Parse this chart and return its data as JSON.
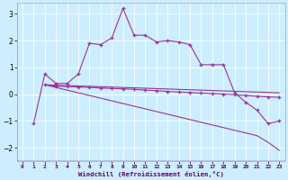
{
  "xlabel": "Windchill (Refroidissement éolien,°C)",
  "background_color": "#cceeff",
  "line_color": "#993399",
  "xlim": [
    -0.5,
    23.5
  ],
  "ylim": [
    -2.5,
    3.4
  ],
  "yticks": [
    -2,
    -1,
    0,
    1,
    2,
    3
  ],
  "xticks": [
    0,
    1,
    2,
    3,
    4,
    5,
    6,
    7,
    8,
    9,
    10,
    11,
    12,
    13,
    14,
    15,
    16,
    17,
    18,
    19,
    20,
    21,
    22,
    23
  ],
  "series1_x": [
    1,
    2,
    3,
    4,
    5,
    6,
    7,
    8,
    9,
    10,
    11,
    12,
    13,
    14,
    15,
    16,
    17,
    18,
    19,
    20,
    21,
    22,
    23
  ],
  "series1_y": [
    -1.1,
    0.75,
    0.4,
    0.4,
    0.75,
    1.9,
    1.85,
    2.1,
    3.2,
    2.2,
    2.2,
    1.95,
    2.0,
    1.95,
    1.85,
    1.1,
    1.1,
    1.1,
    0.05,
    -0.3,
    -0.6,
    -1.1,
    -1.0
  ],
  "series2_x": [
    2,
    3,
    4,
    5,
    6,
    7,
    8,
    9,
    10,
    11,
    12,
    13,
    14,
    15,
    16,
    17,
    18,
    19,
    20,
    21,
    22,
    23
  ],
  "series2_y": [
    0.35,
    0.3,
    0.28,
    0.27,
    0.25,
    0.23,
    0.21,
    0.2,
    0.18,
    0.15,
    0.13,
    0.1,
    0.08,
    0.06,
    0.04,
    0.02,
    0.0,
    -0.02,
    -0.05,
    -0.08,
    -0.1,
    -0.12
  ],
  "series3_x": [
    2,
    23
  ],
  "series3_y": [
    0.35,
    0.05
  ],
  "series4_x": [
    2,
    21,
    22,
    23
  ],
  "series4_y": [
    0.35,
    -1.55,
    -1.8,
    -2.1
  ]
}
